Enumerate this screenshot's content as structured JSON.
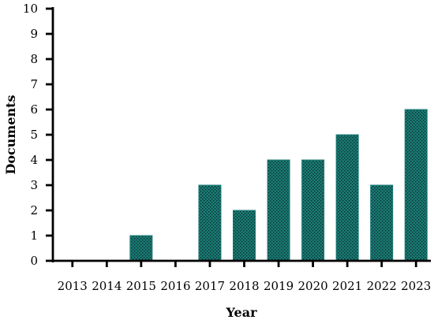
{
  "chart_data": {
    "type": "bar",
    "categories": [
      "2013",
      "2014",
      "2015",
      "2016",
      "2017",
      "2018",
      "2019",
      "2020",
      "2021",
      "2022",
      "2023"
    ],
    "values": [
      0,
      0,
      1,
      0,
      3,
      2,
      4,
      4,
      5,
      3,
      6
    ],
    "xlabel": "Year",
    "ylabel": "Documents",
    "ylim": [
      0,
      10
    ],
    "yticks": [
      "0",
      "1",
      "2",
      "3",
      "4",
      "5",
      "6",
      "7",
      "8",
      "9",
      "10"
    ],
    "grid": false,
    "bar_color": "#1a7a74",
    "bar_pattern": "dotted",
    "axis_color": "#000000"
  }
}
